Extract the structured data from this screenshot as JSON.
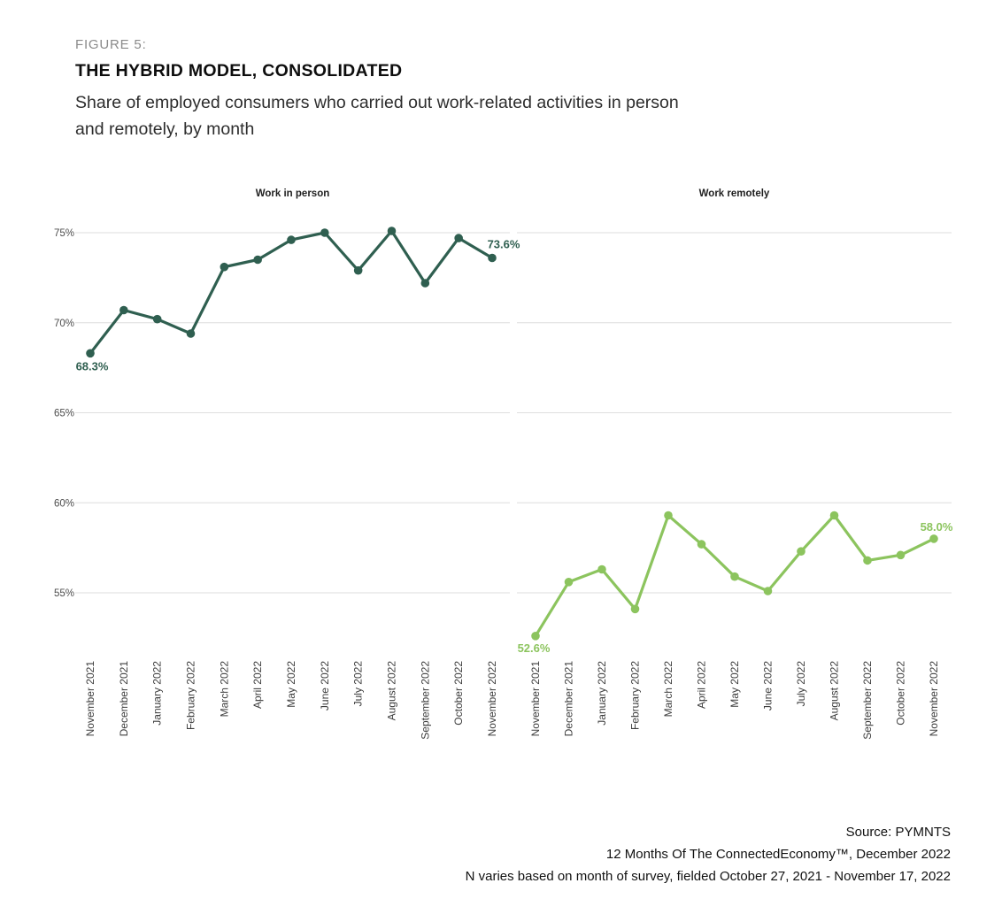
{
  "figure": {
    "label": "FIGURE 5:",
    "title": "THE HYBRID MODEL, CONSOLIDATED",
    "subtitle": "Share of employed consumers who carried out work-related activities in person\nand remotely, by month"
  },
  "chart_data": {
    "type": "line",
    "layout": "two-panel side-by-side, shared y axis",
    "categories": [
      "November 2021",
      "December 2021",
      "January 2022",
      "February 2022",
      "March 2022",
      "April 2022",
      "May 2022",
      "June 2022",
      "July 2022",
      "August 2022",
      "September 2022",
      "October 2022",
      "November 2022"
    ],
    "y_tick_labels": [
      "75%",
      "70%",
      "65%",
      "60%",
      "55%"
    ],
    "ylim": [
      52.0,
      76.5
    ],
    "grid": true,
    "gridline_color": "#dedede",
    "series": [
      {
        "name": "Work in person",
        "color": "#2f5f50",
        "values": [
          68.3,
          70.7,
          70.2,
          69.4,
          73.1,
          73.5,
          74.6,
          75.0,
          72.9,
          75.1,
          72.2,
          74.7,
          73.6
        ],
        "first_point_label": "68.3%",
        "last_point_label": "73.6%"
      },
      {
        "name": "Work remotely",
        "color": "#8cc45e",
        "values": [
          52.6,
          55.6,
          56.3,
          54.1,
          59.3,
          57.7,
          55.9,
          55.1,
          57.3,
          59.3,
          56.8,
          57.1,
          58.0
        ],
        "first_point_label": "52.6%",
        "last_point_label": "58.0%"
      }
    ]
  },
  "footer": {
    "line1": "Source: PYMNTS",
    "line2": "12 Months Of The ConnectedEconomy™, December 2022",
    "line3": "N varies based on month of survey, fielded October 27, 2021 - November 17, 2022"
  }
}
